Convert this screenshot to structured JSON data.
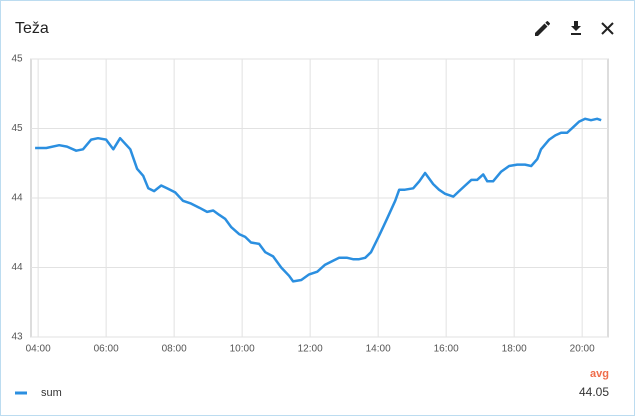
{
  "chart_data": {
    "type": "line",
    "title": "Teža",
    "x": [
      3.91,
      4.24,
      4.62,
      4.85,
      5.12,
      5.32,
      5.56,
      5.76,
      6.0,
      6.21,
      6.41,
      6.71,
      6.91,
      7.09,
      7.24,
      7.41,
      7.62,
      7.79,
      8.03,
      8.26,
      8.5,
      8.74,
      8.97,
      9.15,
      9.32,
      9.5,
      9.68,
      9.91,
      10.09,
      10.26,
      10.5,
      10.68,
      10.91,
      11.15,
      11.38,
      11.5,
      11.74,
      11.97,
      12.21,
      12.44,
      12.68,
      12.85,
      13.09,
      13.26,
      13.44,
      13.62,
      13.79,
      14.03,
      14.26,
      14.5,
      14.62,
      14.79,
      15.03,
      15.21,
      15.38,
      15.62,
      15.79,
      15.97,
      16.21,
      16.38,
      16.56,
      16.74,
      16.91,
      17.09,
      17.21,
      17.38,
      17.62,
      17.85,
      18.09,
      18.32,
      18.5,
      18.68,
      18.79,
      19.03,
      19.21,
      19.38,
      19.56,
      19.74,
      19.91,
      20.09,
      20.26,
      20.44,
      20.56
    ],
    "series": [
      {
        "name": "sum",
        "color": "#2b8fe0",
        "avg": 44.05,
        "values": [
          44.36,
          44.36,
          44.38,
          44.37,
          44.34,
          44.35,
          44.42,
          44.43,
          44.42,
          44.35,
          44.43,
          44.35,
          44.21,
          44.16,
          44.07,
          44.05,
          44.09,
          44.07,
          44.04,
          43.98,
          43.96,
          43.93,
          43.9,
          43.91,
          43.88,
          43.85,
          43.79,
          43.74,
          43.72,
          43.68,
          43.67,
          43.61,
          43.58,
          43.5,
          43.44,
          43.4,
          43.41,
          43.45,
          43.47,
          43.52,
          43.55,
          43.57,
          43.57,
          43.56,
          43.56,
          43.57,
          43.61,
          43.73,
          43.85,
          43.98,
          44.06,
          44.06,
          44.07,
          44.12,
          44.18,
          44.1,
          44.06,
          44.03,
          44.01,
          44.05,
          44.09,
          44.13,
          44.13,
          44.17,
          44.12,
          44.12,
          44.19,
          44.23,
          44.24,
          44.24,
          44.23,
          44.28,
          44.35,
          44.42,
          44.45,
          44.47,
          44.47,
          44.51,
          44.55,
          44.57,
          44.56,
          44.57,
          44.56
        ]
      }
    ],
    "legend_header": "avg",
    "xlim": [
      3.79,
      20.76
    ],
    "xticks": [
      {
        "value": 4,
        "label": "04:00"
      },
      {
        "value": 6,
        "label": "06:00"
      },
      {
        "value": 8,
        "label": "08:00"
      },
      {
        "value": 10,
        "label": "10:00"
      },
      {
        "value": 12,
        "label": "12:00"
      },
      {
        "value": 14,
        "label": "14:00"
      },
      {
        "value": 16,
        "label": "16:00"
      },
      {
        "value": 18,
        "label": "18:00"
      },
      {
        "value": 20,
        "label": "20:00"
      }
    ],
    "ylim": [
      43,
      45
    ],
    "yticks": [
      43,
      {
        "value": 43.5,
        "label": "44"
      },
      44,
      {
        "value": 44.5,
        "label": "45"
      },
      45
    ],
    "grid": true
  }
}
